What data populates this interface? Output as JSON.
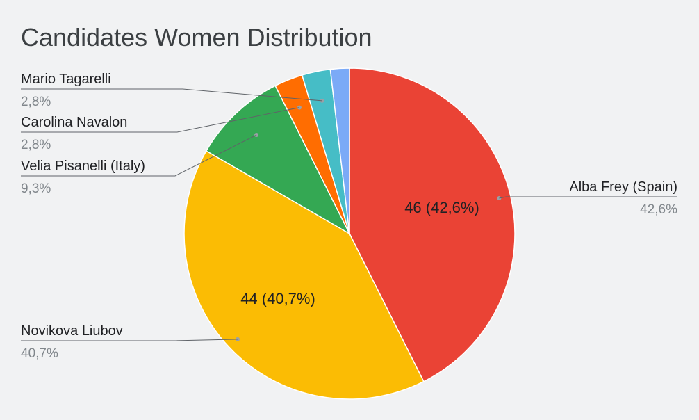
{
  "chart_data": {
    "type": "pie",
    "title": "Candidates Women Distribution",
    "slices": [
      {
        "name": "Alba Frey (Spain)",
        "value": 46,
        "percent_label": "42,6%",
        "inner_label": "46 (42,6%)",
        "color": "#ea4335"
      },
      {
        "name": "Novikova Liubov",
        "value": 44,
        "percent_label": "40,7%",
        "inner_label": "44 (40,7%)",
        "color": "#fbbc04"
      },
      {
        "name": "Velia Pisanelli (Italy)",
        "value": 10,
        "percent_label": "9,3%",
        "inner_label": "",
        "color": "#34a853"
      },
      {
        "name": "Carolina Navalon",
        "value": 3,
        "percent_label": "2,8%",
        "inner_label": "",
        "color": "#ff6d01"
      },
      {
        "name": "Mario Tagarelli",
        "value": 3,
        "percent_label": "2,8%",
        "inner_label": "",
        "color": "#46bdc6"
      },
      {
        "name": "",
        "value": 2,
        "percent_label": "",
        "inner_label": "",
        "color": "#7baaf7"
      }
    ],
    "legend_placement": "callouts"
  }
}
